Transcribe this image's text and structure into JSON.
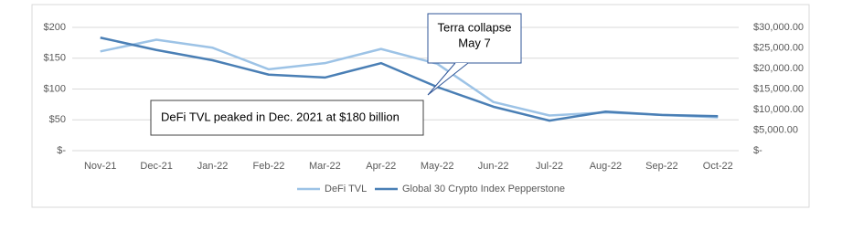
{
  "chart_data": {
    "type": "line",
    "categories": [
      "Nov-21",
      "Dec-21",
      "Jan-22",
      "Feb-22",
      "Mar-22",
      "Apr-22",
      "May-22",
      "Jun-22",
      "Jul-22",
      "Aug-22",
      "Sep-22",
      "Oct-22"
    ],
    "series": [
      {
        "name": "DeFi TVL",
        "color": "#9dc3e6",
        "values": [
          161,
          180,
          167,
          132,
          142,
          165,
          141,
          79,
          57,
          62,
          58,
          54
        ]
      },
      {
        "name": "Global 30 Crypto Index Pepperstone",
        "color": "#4a7fb5",
        "axis": "y2",
        "values": [
          27500,
          24500,
          22000,
          18500,
          17800,
          21300,
          15500,
          10700,
          7300,
          9500,
          8700,
          8400
        ]
      }
    ],
    "ylim": [
      0,
      200
    ],
    "yticks": [
      {
        "value": 0,
        "label": "$-"
      },
      {
        "value": 50,
        "label": "$50"
      },
      {
        "value": 100,
        "label": "$100"
      },
      {
        "value": 150,
        "label": "$150"
      },
      {
        "value": 200,
        "label": "$200"
      }
    ],
    "y2lim": [
      0,
      30000
    ],
    "y2ticks": [
      {
        "value": 0,
        "label": "$-"
      },
      {
        "value": 5000,
        "label": "$5,000.00"
      },
      {
        "value": 10000,
        "label": "$10,000.00"
      },
      {
        "value": 15000,
        "label": "$15,000.00"
      },
      {
        "value": 20000,
        "label": "$20,000.00"
      },
      {
        "value": 25000,
        "label": "$25,000.00"
      },
      {
        "value": 30000,
        "label": "$30,000.00"
      }
    ],
    "grid": true,
    "annotations": [
      "Terra collapse",
      "May 7",
      "DeFi TVL peaked in Dec. 2021 at $180 billion"
    ]
  }
}
